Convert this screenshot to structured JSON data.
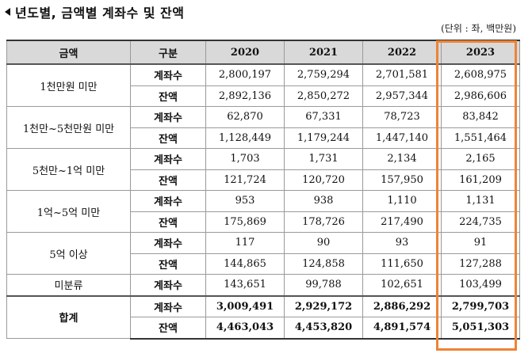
{
  "heading": {
    "title": "년도별, 금액별 계좌수 및 잔액"
  },
  "unit": "(단위 : 좌, 백만원)",
  "table": {
    "headers": [
      "금액",
      "구분",
      "2020",
      "2021",
      "2022",
      "2023"
    ],
    "groups": [
      {
        "category": "1천만원 미만",
        "rows": [
          {
            "type": "계좌수",
            "values": [
              "2,800,197",
              "2,759,294",
              "2,701,581",
              "2,608,975"
            ]
          },
          {
            "type": "잔액",
            "values": [
              "2,892,136",
              "2,850,272",
              "2,957,344",
              "2,986,606"
            ]
          }
        ]
      },
      {
        "category": "1천만~5천만원 미만",
        "rows": [
          {
            "type": "계좌수",
            "values": [
              "62,870",
              "67,331",
              "78,723",
              "83,842"
            ]
          },
          {
            "type": "잔액",
            "values": [
              "1,128,449",
              "1,179,244",
              "1,447,140",
              "1,551,464"
            ]
          }
        ]
      },
      {
        "category": "5천만~1억 미만",
        "rows": [
          {
            "type": "계좌수",
            "values": [
              "1,703",
              "1,731",
              "2,134",
              "2,165"
            ]
          },
          {
            "type": "잔액",
            "values": [
              "121,724",
              "120,720",
              "157,950",
              "161,209"
            ]
          }
        ]
      },
      {
        "category": "1억~5억 미만",
        "rows": [
          {
            "type": "계좌수",
            "values": [
              "953",
              "938",
              "1,110",
              "1,131"
            ]
          },
          {
            "type": "잔액",
            "values": [
              "175,869",
              "178,726",
              "217,490",
              "224,735"
            ]
          }
        ]
      },
      {
        "category": "5억 이상",
        "rows": [
          {
            "type": "계좌수",
            "values": [
              "117",
              "90",
              "93",
              "91"
            ]
          },
          {
            "type": "잔액",
            "values": [
              "144,865",
              "124,858",
              "111,650",
              "127,288"
            ]
          }
        ]
      },
      {
        "category": "미분류",
        "rows": [
          {
            "type": "계좌수",
            "values": [
              "143,651",
              "99,788",
              "102,651",
              "103,499"
            ]
          }
        ]
      },
      {
        "category": "합계",
        "total": true,
        "rows": [
          {
            "type": "계좌수",
            "values": [
              "3,009,491",
              "2,929,172",
              "2,886,292",
              "2,799,703"
            ]
          },
          {
            "type": "잔액",
            "values": [
              "4,463,043",
              "4,453,820",
              "4,891,574",
              "5,051,303"
            ]
          }
        ]
      }
    ]
  },
  "highlight_color": "#ee8336"
}
